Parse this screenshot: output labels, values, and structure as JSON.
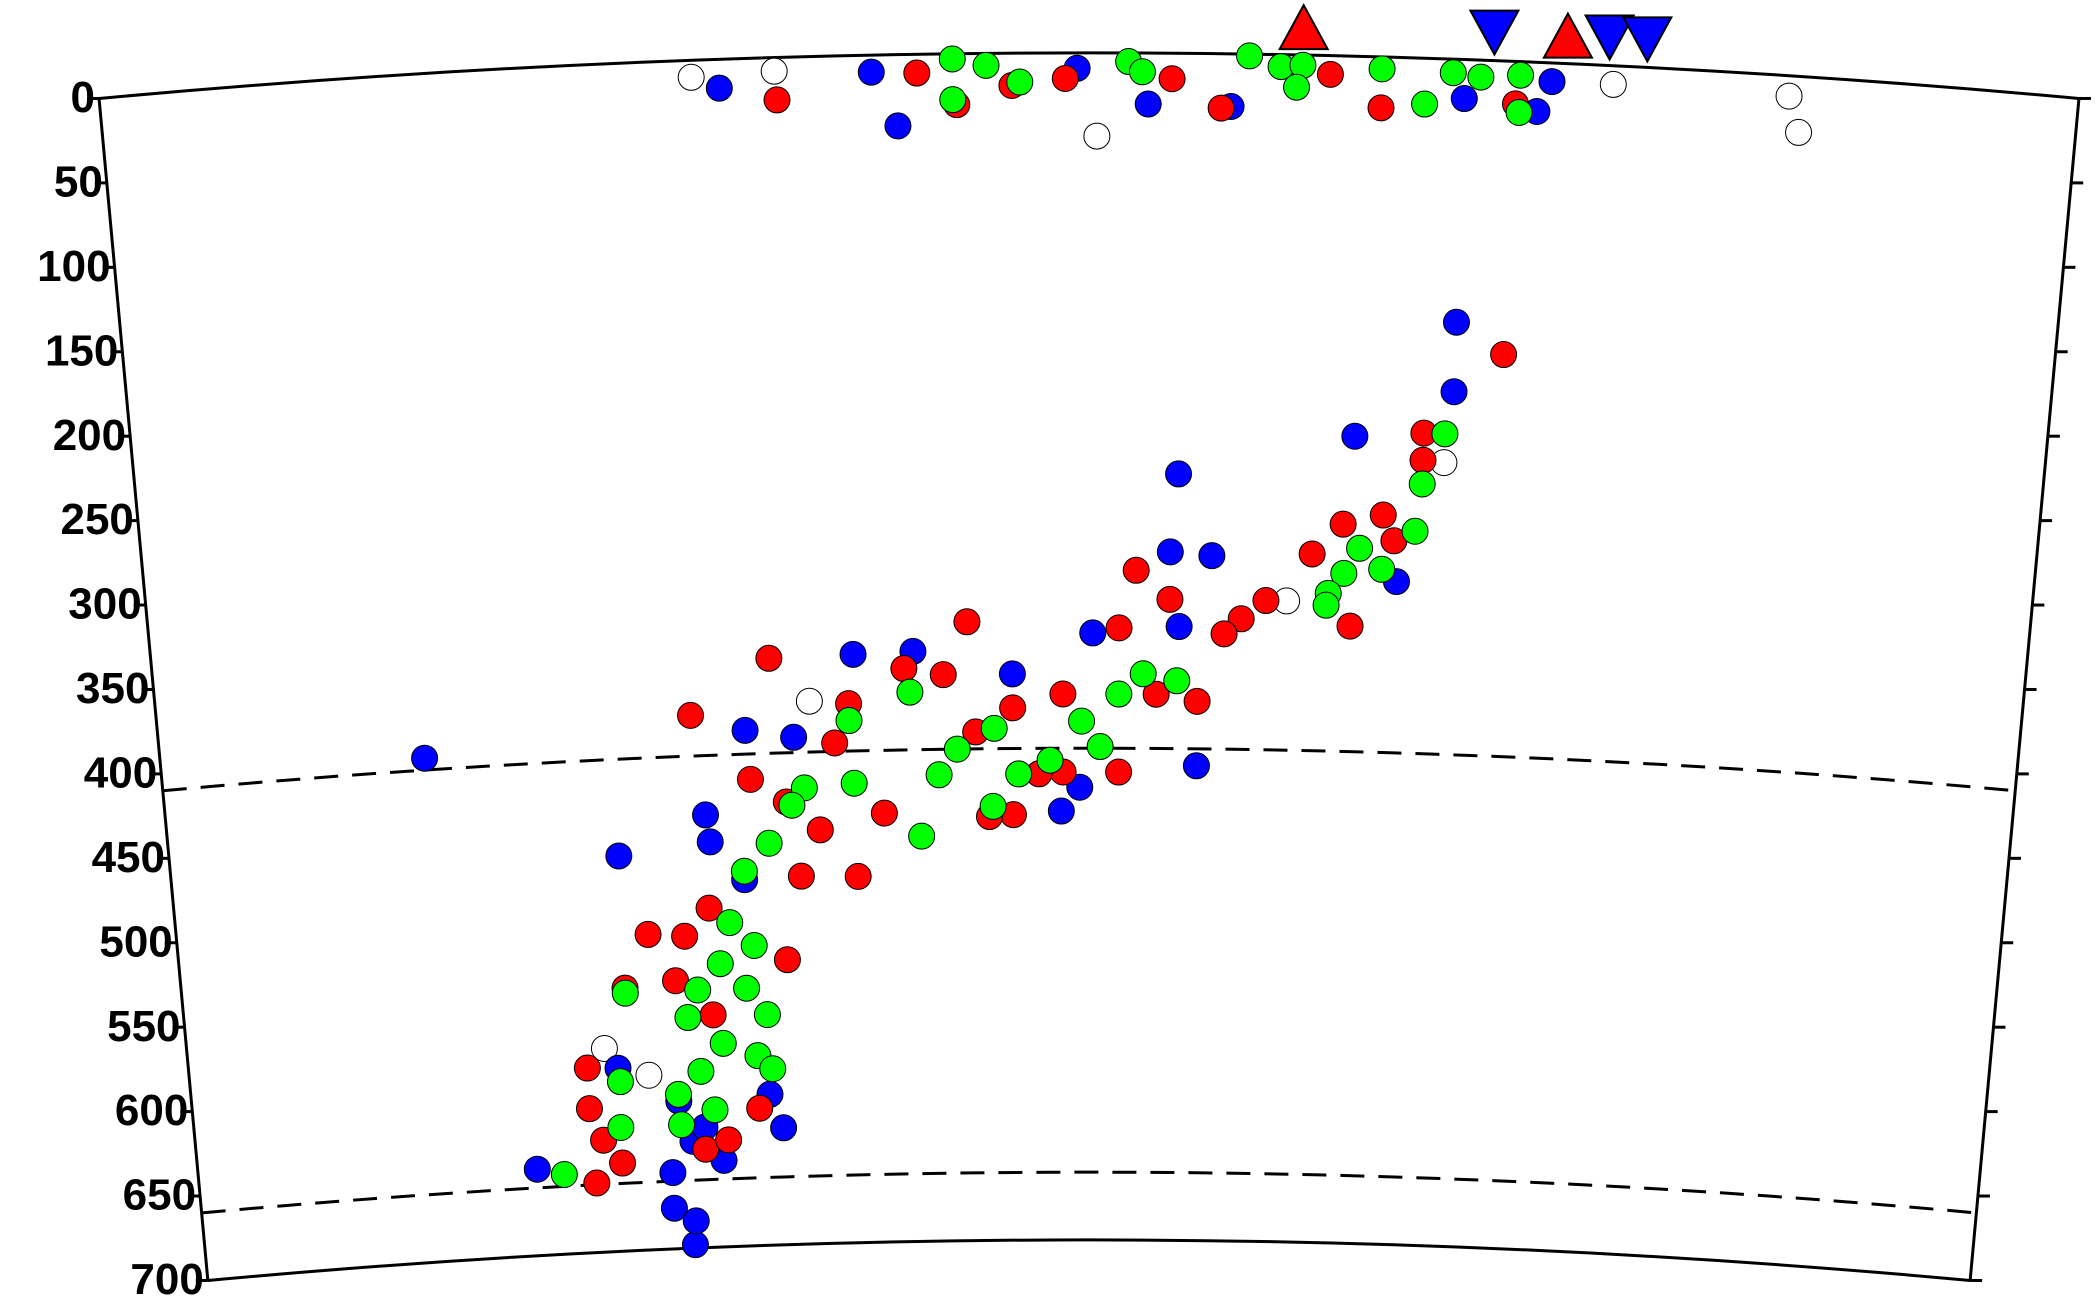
{
  "chart_data": {
    "type": "scatter",
    "xlim": [
      0,
      1000
    ],
    "ylim": [
      0,
      700
    ],
    "yticks": [
      0,
      50,
      100,
      150,
      200,
      250,
      300,
      350,
      400,
      450,
      500,
      550,
      600,
      650,
      700
    ],
    "hlines": [
      410,
      660
    ],
    "series": [
      {
        "color": "#ffffff",
        "x": [
          299,
          341,
          504,
          765,
          854,
          860,
          350,
          686,
          231,
          255,
          605
        ],
        "values": [
          10,
          8,
          49,
          11,
          12,
          33,
          380,
          238,
          580,
          597,
          322
        ]
      },
      {
        "color": "#0000ff",
        "x": [
          313,
          390,
          403,
          494,
          530,
          727,
          690,
          734,
          572,
          142,
          690,
          690,
          639,
          547,
          543,
          565,
          558,
          485,
          374,
          406,
          459,
          315,
          341,
          292,
          294,
          312,
          190,
          266,
          277,
          278,
          266,
          278,
          295,
          329,
          322,
          285,
          271,
          244,
          238,
          663,
          502,
          548,
          495
        ],
        "values": [
          17,
          10,
          42,
          9,
          30,
          29,
          23,
          11,
          31,
          403,
          155,
          196,
          224,
          248,
          294,
          296,
          420,
          447,
          353,
          352,
          366,
          396,
          401,
          445,
          461,
          484,
          649,
          676,
          698,
          684,
          655,
          637,
          649,
          631,
          611,
          629,
          613,
          467,
          592,
          309,
          342,
          338,
          433
        ]
      },
      {
        "color": "#ff0000",
        "x": [
          342,
          433,
          413,
          488,
          542,
          567,
          648,
          716,
          622,
          461,
          715,
          675,
          675,
          655,
          634,
          661,
          618,
          639,
          581,
          594,
          543,
          525,
          516,
          486,
          459,
          435,
          439,
          422,
          401,
          371,
          363,
          389,
          374,
          329,
          286,
          317,
          336,
          354,
          343,
          292,
          278,
          258,
          244,
          221,
          221,
          228,
          223,
          238,
          285,
          298,
          316,
          292,
          272,
          334,
          459,
          486,
          516,
          446,
          473,
          536,
          558,
          572
        ],
        "values": [
          25,
          30,
          11,
          15,
          15,
          32,
          30,
          25,
          11,
          19,
          173,
          221,
          237,
          270,
          276,
          285,
          294,
          336,
          333,
          322,
          322,
          305,
          339,
          378,
          386,
          335,
          400,
          366,
          362,
          382,
          405,
          447,
          484,
          354,
          386,
          425,
          439,
          456,
          483,
          500,
          516,
          514,
          545,
          591,
          615,
          634,
          659,
          648,
          642,
          637,
          619,
          563,
          542,
          532,
          449,
          424,
          424,
          450,
          425,
          378,
          382,
          342
        ]
      },
      {
        "color": "#00ff00",
        "x": [
          431,
          448,
          431,
          465,
          520,
          527,
          581,
          597,
          608,
          605,
          648,
          670,
          684,
          698,
          718,
          718,
          686,
          675,
          672,
          643,
          635,
          627,
          655,
          626,
          547,
          529,
          516,
          506,
          496,
          479,
          462,
          449,
          448,
          429,
          419,
          409,
          404,
          371,
          373,
          346,
          339,
          326,
          312,
          303,
          316,
          297,
          284,
          311,
          297,
          284,
          291,
          316,
          322,
          244,
          239,
          238,
          205,
          272,
          271,
          324,
          278
        ],
        "values": [
          3,
          7,
          27,
          17,
          5,
          11,
          1,
          7,
          6,
          19,
          7,
          27,
          8,
          10,
          8,
          30,
          221,
          251,
          279,
          290,
          305,
          317,
          302,
          324,
          370,
          366,
          378,
          409,
          394,
          417,
          425,
          398,
          444,
          410,
          425,
          461,
          376,
          392,
          429,
          431,
          441,
          463,
          479,
          509,
          523,
          533,
          548,
          548,
          580,
          596,
          619,
          588,
          564,
          548,
          600,
          627,
          653,
          627,
          609,
          596,
          564
        ]
      }
    ],
    "surface_markers": [
      {
        "shape": "triangle-up",
        "color": "#ff0000",
        "x": [
          608,
          741
        ]
      },
      {
        "shape": "triangle-down",
        "color": "#0000ff",
        "x": [
          704,
          762,
          781
        ]
      }
    ]
  }
}
